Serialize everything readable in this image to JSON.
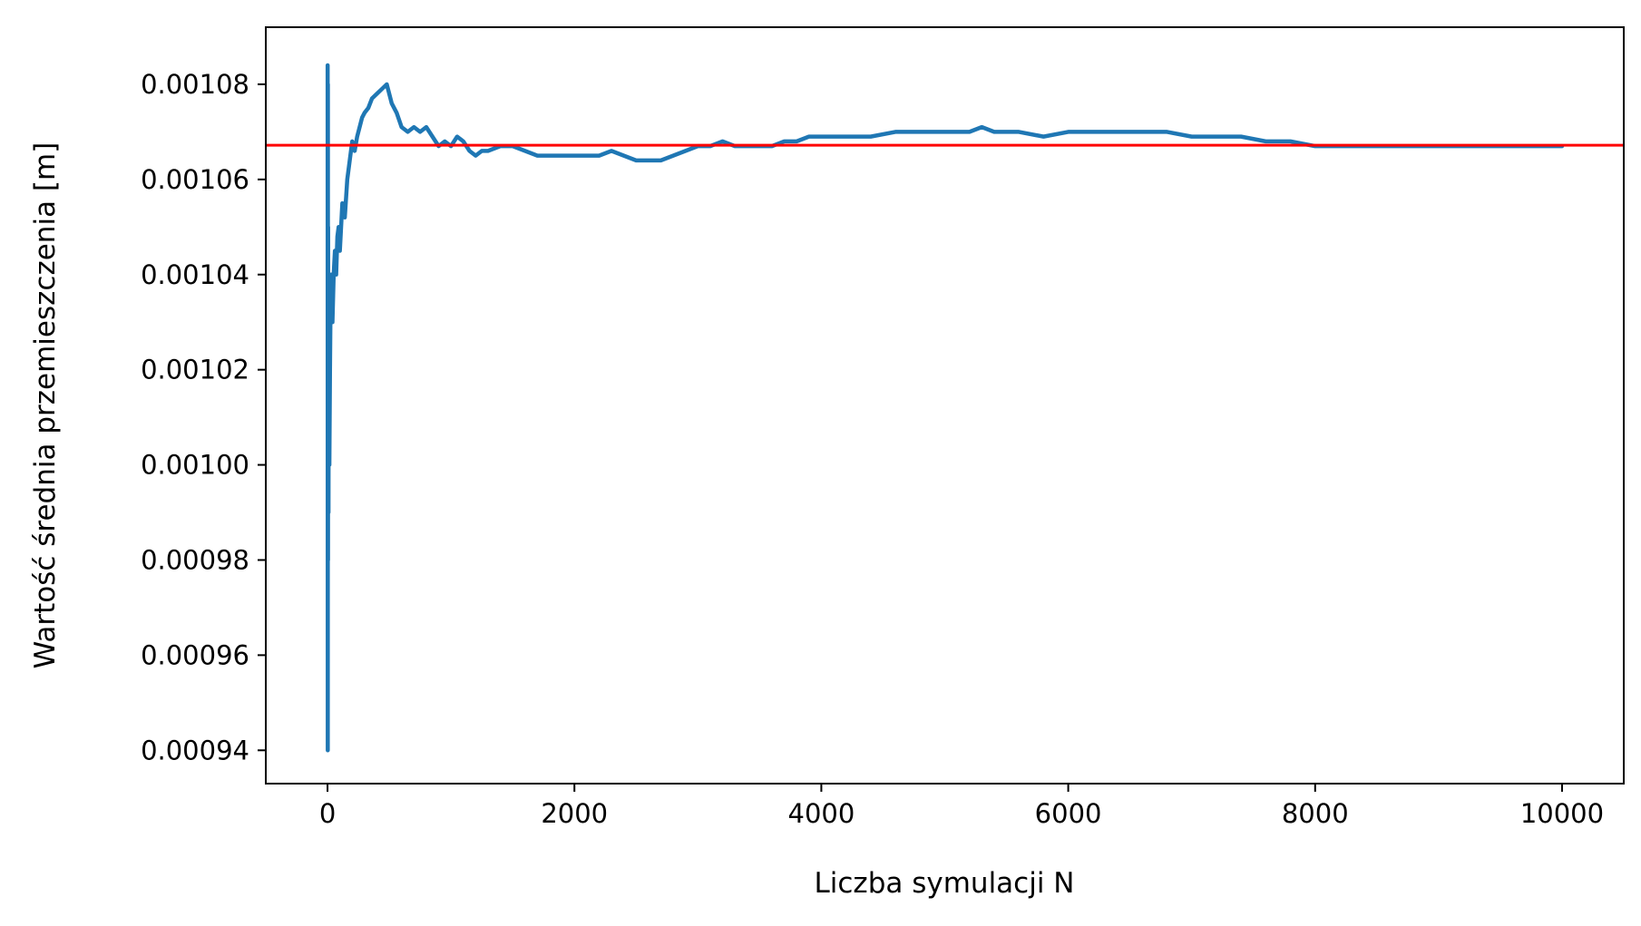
{
  "chart_data": {
    "type": "line",
    "title": "",
    "xlabel": "Liczba symulacji N",
    "ylabel": "Wartość średnia przemieszczenia [m]",
    "xlim": [
      -500,
      10500
    ],
    "ylim": [
      0.000933,
      0.001092
    ],
    "xticks": [
      0,
      2000,
      4000,
      6000,
      8000,
      10000
    ],
    "xtick_labels": [
      "0",
      "2000",
      "4000",
      "6000",
      "8000",
      "10000"
    ],
    "yticks": [
      0.00094,
      0.00096,
      0.00098,
      0.001,
      0.00102,
      0.00104,
      0.00106,
      0.00108
    ],
    "ytick_labels": [
      "0.00094",
      "0.00096",
      "0.00098",
      "0.00100",
      "0.00102",
      "0.00104",
      "0.00106",
      "0.00108"
    ],
    "grid": false,
    "colors": {
      "series": "#1f77b4",
      "reference": "#ff0000"
    },
    "reference_line": {
      "y": 0.0010672
    },
    "series": [
      {
        "x": [
          1,
          2,
          3,
          4,
          5,
          8,
          10,
          15,
          20,
          25,
          30,
          40,
          50,
          60,
          70,
          80,
          90,
          100,
          120,
          140,
          160,
          180,
          200,
          220,
          240,
          260,
          280,
          300,
          330,
          360,
          400,
          440,
          480,
          500,
          520,
          560,
          600,
          650,
          700,
          750,
          800,
          850,
          900,
          950,
          1000,
          1050,
          1100,
          1150,
          1200,
          1250,
          1300,
          1400,
          1500,
          1600,
          1700,
          1800,
          1900,
          2000,
          2100,
          2200,
          2300,
          2400,
          2500,
          2600,
          2700,
          2800,
          2900,
          3000,
          3100,
          3200,
          3300,
          3400,
          3500,
          3600,
          3700,
          3800,
          3900,
          4000,
          4200,
          4400,
          4600,
          4800,
          5000,
          5200,
          5300,
          5400,
          5600,
          5800,
          6000,
          6200,
          6400,
          6600,
          6800,
          7000,
          7200,
          7400,
          7600,
          7800,
          8000,
          8200,
          8400,
          8600,
          8800,
          9000,
          9200,
          9400,
          9600,
          9800,
          10000
        ],
        "y": [
          0.001084,
          0.00094,
          0.00108,
          0.00098,
          0.00105,
          0.00099,
          0.00104,
          0.001,
          0.00102,
          0.001035,
          0.00104,
          0.00103,
          0.00104,
          0.001045,
          0.00104,
          0.001048,
          0.00105,
          0.001045,
          0.001055,
          0.001052,
          0.00106,
          0.001064,
          0.001068,
          0.001066,
          0.001069,
          0.001071,
          0.001073,
          0.001074,
          0.001075,
          0.001077,
          0.001078,
          0.001079,
          0.00108,
          0.001078,
          0.001076,
          0.001074,
          0.001071,
          0.00107,
          0.001071,
          0.00107,
          0.001071,
          0.001069,
          0.001067,
          0.001068,
          0.001067,
          0.001069,
          0.001068,
          0.001066,
          0.001065,
          0.001066,
          0.001066,
          0.001067,
          0.001067,
          0.001066,
          0.001065,
          0.001065,
          0.001065,
          0.001065,
          0.001065,
          0.001065,
          0.001066,
          0.001065,
          0.001064,
          0.001064,
          0.001064,
          0.001065,
          0.001066,
          0.001067,
          0.001067,
          0.001068,
          0.001067,
          0.001067,
          0.001067,
          0.001067,
          0.001068,
          0.001068,
          0.001069,
          0.001069,
          0.001069,
          0.001069,
          0.00107,
          0.00107,
          0.00107,
          0.00107,
          0.001071,
          0.00107,
          0.00107,
          0.001069,
          0.00107,
          0.00107,
          0.00107,
          0.00107,
          0.00107,
          0.001069,
          0.001069,
          0.001069,
          0.001068,
          0.001068,
          0.001067,
          0.001067,
          0.001067,
          0.001067,
          0.001067,
          0.001067,
          0.001067,
          0.001067,
          0.001067,
          0.001067,
          0.001067
        ]
      }
    ]
  }
}
